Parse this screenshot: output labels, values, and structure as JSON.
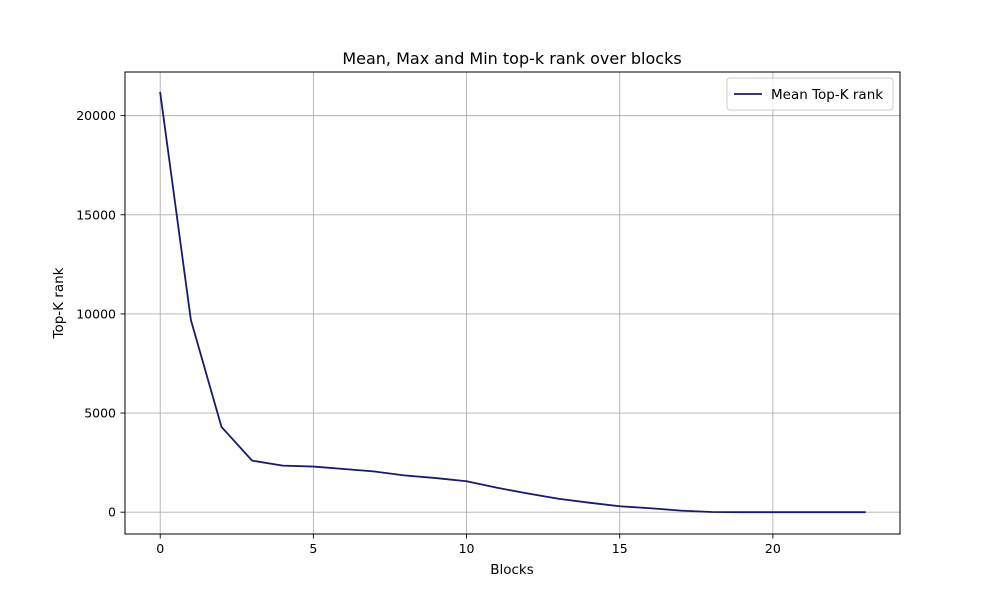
{
  "chart_data": {
    "type": "line",
    "title": "Mean, Max and Min top-k rank over blocks",
    "xlabel": "Blocks",
    "ylabel": "Top-K rank",
    "xlim": [
      -1.15,
      24.15
    ],
    "ylim": [
      -1100,
      22200
    ],
    "xticks": [
      0,
      5,
      10,
      15,
      20
    ],
    "yticks": [
      0,
      5000,
      10000,
      15000,
      20000
    ],
    "xtick_labels": [
      "0",
      "5",
      "10",
      "15",
      "20"
    ],
    "ytick_labels": [
      "0",
      "5000",
      "10000",
      "15000",
      "20000"
    ],
    "grid": true,
    "legend_position": "top-right",
    "series": [
      {
        "name": "Mean Top-K rank",
        "color": "#191970",
        "x": [
          0,
          1,
          2,
          3,
          4,
          5,
          6,
          7,
          8,
          9,
          10,
          11,
          12,
          13,
          14,
          15,
          16,
          17,
          18,
          19,
          20,
          21,
          22,
          23
        ],
        "y": [
          21150,
          9700,
          4300,
          2600,
          2350,
          2300,
          2180,
          2050,
          1850,
          1720,
          1560,
          1230,
          940,
          680,
          480,
          300,
          200,
          80,
          10,
          0,
          0,
          0,
          0,
          0
        ]
      }
    ]
  }
}
